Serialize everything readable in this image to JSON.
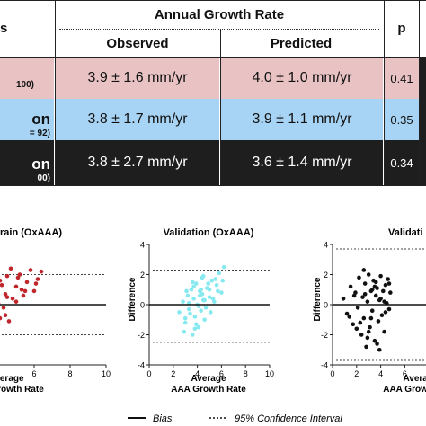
{
  "table": {
    "header_left": "s",
    "header_group": "Annual Growth Rate",
    "header_observed": "Observed",
    "header_predicted": "Predicted",
    "header_p": "p",
    "rows": [
      {
        "label": "",
        "sublabel": "100)",
        "observed": "3.9 ± 1.6 mm/yr",
        "predicted": "4.0 ± 1.0 mm/yr",
        "p": "0.41",
        "color": "#e9c2c4"
      },
      {
        "label": "on",
        "sublabel": "= 92)",
        "observed": "3.8 ± 1.7 mm/yr",
        "predicted": "3.9 ± 1.1 mm/yr",
        "p": "0.35",
        "color": "#a7d4f4"
      },
      {
        "label": "on",
        "sublabel": "00)",
        "observed": "3.8 ± 2.7 mm/yr",
        "predicted": "3.6 ± 1.4 mm/yr",
        "p": "0.34",
        "color": "#1e1e1e"
      }
    ]
  },
  "plots": {
    "plot1_title": "rain (OxAAA)",
    "plot2_title": "Validation (OxAAA)",
    "plot3_title": "Validati",
    "y_label": "Difference",
    "x_label_1": "Average",
    "x_label_2": "AAA Growth Rate"
  },
  "legend": {
    "bias_label": "Bias",
    "ci_label": "95% Confidence Interval"
  },
  "chart_data": [
    {
      "type": "scatter",
      "title": "rain (OxAAA)",
      "xlabel": "Average AAA Growth Rate",
      "ylabel": "Difference",
      "xlim": [
        0,
        10
      ],
      "ylim": [
        -4,
        4
      ],
      "color": "#c0272d",
      "bias": 0,
      "ci": [
        2,
        -2
      ],
      "x": [
        1.2,
        1.6,
        2.0,
        2.3,
        2.6,
        2.8,
        3.0,
        3.1,
        3.3,
        3.4,
        3.5,
        3.6,
        3.7,
        3.8,
        3.9,
        4.0,
        4.1,
        4.2,
        4.3,
        4.4,
        4.5,
        4.6,
        4.8,
        5.0,
        5.2,
        5.4,
        5.6,
        5.8,
        6.0,
        6.2,
        6.4,
        1.8,
        2.4,
        2.9,
        3.2,
        3.5,
        3.8,
        4.1,
        4.4,
        4.7,
        5.0,
        5.3,
        2.2,
        2.7,
        3.0,
        3.6,
        4.0,
        4.5,
        5.1,
        5.5,
        6.1
      ],
      "y": [
        0.3,
        -0.5,
        1.0,
        -0.8,
        0.2,
        1.5,
        -0.3,
        0.8,
        -1.2,
        0.5,
        1.8,
        -0.6,
        0.9,
        -1.5,
        2.2,
        0.1,
        -0.9,
        1.3,
        -0.2,
        0.7,
        1.9,
        -1.1,
        0.4,
        1.2,
        2.0,
        0.6,
        1.5,
        2.3,
        0.9,
        1.7,
        2.2,
        -1.0,
        0.0,
        -1.6,
        1.1,
        -0.4,
        0.3,
        1.6,
        -0.7,
        2.4,
        0.2,
        1.0,
        0.6,
        -0.2,
        2.0,
        1.4,
        -1.3,
        0.5,
        1.8,
        0.9,
        1.4
      ]
    },
    {
      "type": "scatter",
      "title": "Validation (OxAAA)",
      "xlabel": "Average AAA Growth Rate",
      "ylabel": "Difference",
      "xlim": [
        0,
        10
      ],
      "ylim": [
        -4,
        4
      ],
      "color": "#86e9ef",
      "bias": 0,
      "ci": [
        2.3,
        -2.5
      ],
      "x": [
        2.5,
        2.8,
        3.0,
        3.2,
        3.3,
        3.5,
        3.6,
        3.7,
        3.8,
        3.9,
        4.0,
        4.1,
        4.2,
        4.3,
        4.4,
        4.5,
        4.6,
        4.8,
        5.0,
        5.2,
        5.4,
        5.6,
        5.8,
        6.0,
        6.2,
        2.9,
        3.1,
        3.4,
        3.6,
        3.9,
        4.2,
        4.5,
        4.7,
        5.0,
        5.3,
        5.5,
        3.0,
        3.7,
        4.1,
        4.4,
        4.9,
        5.1,
        5.7,
        6.1,
        3.3,
        3.8,
        4.3,
        4.6
      ],
      "y": [
        -0.5,
        0.2,
        -1.2,
        0.6,
        -0.3,
        1.0,
        -2.0,
        0.4,
        -0.8,
        1.4,
        0.0,
        -1.5,
        0.9,
        -0.4,
        1.8,
        0.3,
        -1.0,
        1.1,
        0.5,
        1.6,
        0.2,
        1.3,
        2.1,
        0.8,
        2.5,
        -1.8,
        0.9,
        -0.6,
        1.5,
        -1.3,
        0.6,
        1.9,
        -0.2,
        1.0,
        0.4,
        1.7,
        -0.9,
        1.2,
        -0.1,
        0.7,
        1.4,
        -0.5,
        0.9,
        1.6,
        0.1,
        -1.6,
        1.0,
        0.3
      ]
    },
    {
      "type": "scatter",
      "title": "Validati",
      "xlabel": "Average AAA Growth Rate",
      "ylabel": "Difference",
      "xlim": [
        0,
        10
      ],
      "ylim": [
        -4,
        4
      ],
      "color": "#111111",
      "bias": 0,
      "ci": [
        3.7,
        -3.7
      ],
      "x": [
        0.9,
        1.2,
        1.5,
        1.7,
        1.9,
        2.1,
        2.2,
        2.4,
        2.5,
        2.6,
        2.7,
        2.8,
        2.9,
        3.0,
        3.1,
        3.2,
        3.3,
        3.4,
        3.5,
        3.6,
        3.7,
        3.8,
        3.9,
        4.0,
        4.1,
        4.2,
        4.3,
        4.4,
        4.5,
        4.6,
        4.7,
        4.8,
        1.4,
        1.8,
        2.3,
        2.6,
        3.0,
        3.3,
        3.7,
        4.0,
        4.4,
        4.7,
        2.0,
        2.7,
        3.2,
        3.6,
        3.9,
        4.3,
        2.9,
        3.5
      ],
      "y": [
        0.4,
        -0.6,
        1.2,
        -1.3,
        0.8,
        -0.2,
        1.8,
        -2.0,
        0.5,
        -0.9,
        1.4,
        -2.8,
        0.2,
        2.0,
        -1.5,
        0.9,
        -0.4,
        1.6,
        -2.4,
        0.6,
        1.1,
        -1.1,
        0.3,
        1.9,
        -0.7,
        0.9,
        -1.8,
        1.3,
        0.1,
        1.7,
        -0.3,
        0.8,
        -0.8,
        0.6,
        -1.2,
        2.3,
        -1.8,
        1.0,
        -2.6,
        0.4,
        -0.5,
        1.4,
        -1.6,
        0.7,
        -0.9,
        1.5,
        -3.0,
        0.2,
        -2.2,
        1.2
      ]
    }
  ]
}
